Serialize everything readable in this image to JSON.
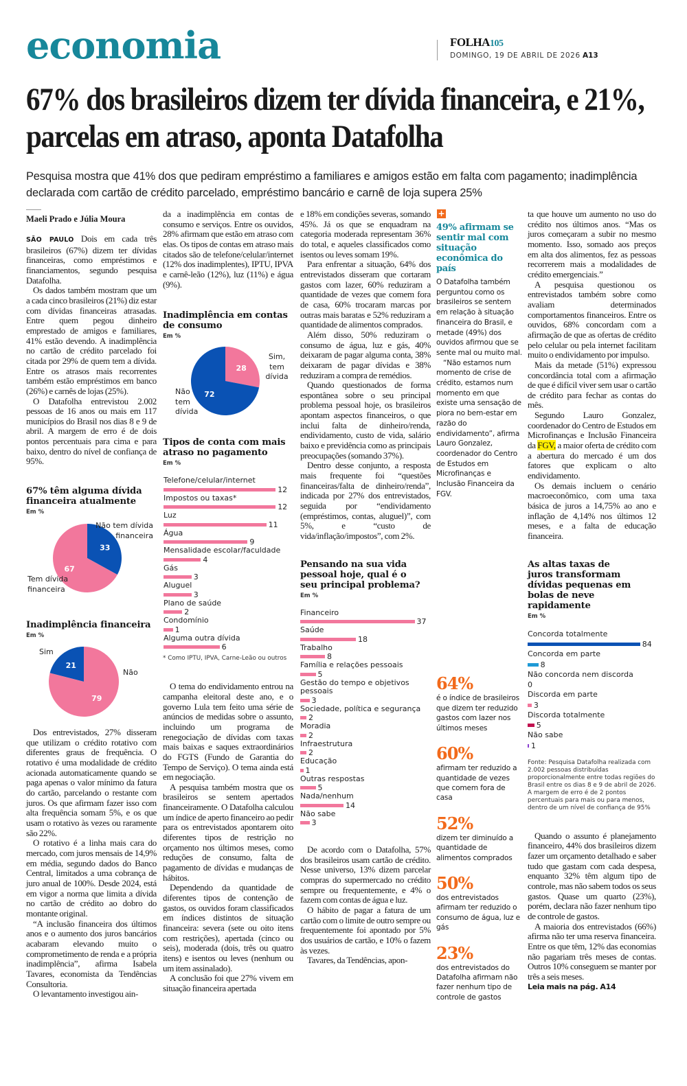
{
  "masthead": {
    "section": "economia",
    "brand": "FOLHA",
    "brand_suffix": "105",
    "date": "DOMINGO, 19 DE ABRIL DE 2026",
    "page": "A13"
  },
  "article": {
    "headline": "67% dos brasileiros dizem ter dívida financeira, e 21%, parcelas em atraso, aponta Datafolha",
    "subtitle": "Pesquisa mostra que 41% dos que pediram empréstimo a familiares e amigos estão em falta com pagamento; inadimplência declarada com cartão de crédito parcelado, empréstimo bancário e carnê de loja supera 25%",
    "byline": "Maeli Prado e Júlia Moura",
    "dateline": "SÃO PAULO",
    "col1_top": [
      "Dois em cada três brasileiros (67%) dizem ter dívidas financeiras, como empréstimos e financiamentos, segundo pesquisa Datafolha.",
      "Os dados também mostram que um a cada cinco brasileiros (21%) diz estar com dívidas financeiras atrasadas. Entre quem pegou dinheiro emprestado de amigos e familiares, 41% estão devendo. A inadimplência no cartão de crédito parcelado foi citada por 29% de quem tem a dívida. Entre os atrasos mais recorrentes também estão empréstimos em banco (26%) e carnês de lojas (25%).",
      "O Datafolha entrevistou 2.002 pessoas de 16 anos ou mais em 117 municípios do Brasil nos dias 8 e 9 de abril. A margem de erro é de dois pontos percentuais para cima e para baixo, dentro do nível de confiança de 95%."
    ],
    "col1_bottom": [
      "Dos entrevistados, 27% disseram que utilizam o crédito rotativo com diferentes graus de frequência. O rotativo é uma modalidade de crédito acionada automaticamente quando se paga apenas o valor mínimo da fatura do cartão, parcelando o restante com juros. Os que afirmam fazer isso com alta frequência somam 5%, e os que usam o rotativo às vezes ou raramente são 22%.",
      "O rotativo é a linha mais cara do mercado, com juros mensais de 14,9% em média, segundo dados do Banco Central, limitados a uma cobrança de juro anual de 100%. Desde 2024, está em vigor a norma que limita a dívida no cartão de crédito ao dobro do montante original.",
      "“A inclusão financeira dos últimos anos e o aumento dos juros bancários acabaram elevando muito o comprometimento de renda e a própria inadimplência”, afirma Isabela Tavares, economista da Tendências Consultoria.",
      "O levantamento investigou ain-"
    ],
    "col2_top": [
      "da a inadimplência em contas de consumo e serviços. Entre os ouvidos, 28% afirmam que estão em atraso com elas. Os tipos de contas em atraso mais citados são de telefone/celular/internet (12% dos inadimplentes), IPTU, IPVA e carnê-leão (12%), luz (11%) e água (9%)."
    ],
    "col2_bottom": [
      "O tema do endividamento entrou na campanha eleitoral deste ano, e o governo Lula tem feito uma série de anúncios de medidas sobre o assunto, incluindo um programa de renegociação de dívidas com taxas mais baixas e saques extraordinários do FGTS (Fundo de Garantia do Tempo de Serviço). O tema ainda está em negociação.",
      "A pesquisa também mostra que os brasileiros se sentem apertados financeiramente. O Datafolha calculou um índice de aperto financeiro ao pedir para os entrevistados apontarem oito diferentes tipos de restrição no orçamento nos últimos meses, como reduções de consumo, falta de pagamento de dívidas e mudanças de hábitos.",
      "Dependendo da quantidade de diferentes tipos de contenção de gastos, os ouvidos foram classificados em índices distintos de situação financeira: severa (sete ou oito itens com restrições), apertada (cinco ou seis), moderada (dois, três ou quatro itens) e isentos ou leves (nenhum ou um item assinalado).",
      "A conclusão foi que 27% vivem em situação financeira apertada"
    ],
    "col3_top": [
      "e 18% em condições severas, somando 45%. Já os que se enquadram na categoria moderada representam 36% do total, e aqueles classificados como isentos ou leves somam 19%.",
      "Para enfrentar a situação, 64% dos entrevistados disseram que cortaram gastos com lazer, 60% reduziram a quantidade de vezes que comem fora de casa, 60% trocaram marcas por outras mais baratas e 52% reduziram a quantidade de alimentos comprados.",
      "Além disso, 50% reduziram o consumo de água, luz e gás, 40% deixaram de pagar alguma conta, 38% deixaram de pagar dívidas e 38% reduziram a compra de remédios.",
      "Quando questionados de forma espontânea sobre o seu principal problema pessoal hoje, os brasileiros apontam aspectos financeiros, o que inclui falta de dinheiro/renda, endividamento, custo de vida, salário baixo e previdência como as principais preocupações (somando 37%).",
      "Dentro desse conjunto, a resposta mais frequente foi “questões financeiras/falta de dinheiro/renda”, indicada por 27% dos entrevistados, seguida por “endividamento (empréstimos, contas, aluguel)”, com 5%, e “custo de vida/inflação/impostos”, com 2%."
    ],
    "col3_bottom": [
      "De acordo com o Datafolha, 57% dos brasileiros usam cartão de crédito. Nesse universo, 13% dizem parcelar compras do supermercado no crédito sempre ou frequentemente, e 4% o fazem com contas de água e luz.",
      "O hábito de pagar a fatura de um cartão com o limite de outro sempre ou frequentemente foi apontado por 5% dos usuários de cartão, e 10% o fazem às vezes.",
      "Tavares, da Tendências, apon-"
    ],
    "col5_top": [
      "ta que houve um aumento no uso do crédito nos últimos anos. “Mas os juros começaram a subir no mesmo momento. Isso, somado aos preços em alta dos alimentos, fez as pessoas recorrerem mais a modalidades de crédito emergenciais.”",
      "A pesquisa questionou os entrevistados também sobre como avaliam determinados comportamentos financeiros. Entre os ouvidos, 68% concordam com a afirmação de que as ofertas de crédito pelo celular ou pela internet facilitam muito o endividamento por impulso.",
      "Mais da metade (51%) expressou concordância total com a afirmação de que é difícil viver sem usar o cartão de crédito para fechar as contas do mês."
    ],
    "col5_gonzalez_before": "Segundo Lauro Gonzalez, coordenador do Centro de Estudos em Microfinanças e Inclusão Financeira da ",
    "col5_gonzalez_highlight": "FGV,",
    "col5_gonzalez_after": " a maior oferta de crédito com a abertura do mercado é um dos fatores que explicam o alto endividamento.",
    "col5_macro": "Os demais incluem o cenário macroeconômico, com uma taxa básica de juros a 14,75% ao ano e inflação de 4,14% nos últimos 12 meses, e a falta de educação financeira.",
    "col5_bottom": [
      "Quando o assunto é planejamento financeiro, 44% dos brasileiros dizem fazer um orçamento detalhado e saber tudo que gastam com cada despesa, enquanto 32% têm algum tipo de controle, mas não sabem todos os seus gastos. Quase um quarto (23%), porém, declara não fazer nenhum tipo de controle de gastos.",
      "A maioria dos entrevistados (66%) afirma não ter uma reserva financeira. Entre os que têm, 12% das economias não pagariam três meses de contas. Outros 10% conseguem se manter por três a seis meses."
    ],
    "read_more": "Leia mais na pág. A14"
  },
  "sidebar": {
    "icon": "plus-icon",
    "title": "49% afirmam se sentir mal com situação econômica do país",
    "body": [
      "O Datafolha também perguntou como os brasileiros se sentem em relação à situação financeira do Brasil, e metade (49%) dos ouvidos afirmou que se sente mal ou muito mal.",
      "“Não estamos num momento de crise de crédito, estamos num momento em que existe uma sensação de piora no bem-estar em razão do endividamento”, afirma Lauro Gonzalez, coordenador do Centro de Estudos em Microfinanças e Inclusão Financeira da FGV."
    ],
    "stats": [
      {
        "value": "64%",
        "text": "é o índice de brasileiros que dizem ter reduzido gastos com lazer nos últimos meses"
      },
      {
        "value": "60%",
        "text": "afirmam ter reduzido a quantidade de vezes que comem fora de casa"
      },
      {
        "value": "52%",
        "text": "dizem ter diminuído a quantidade de alimentos comprados"
      },
      {
        "value": "50%",
        "text": "dos entrevistados afirmam ter reduzido o consumo de água, luz e gás"
      },
      {
        "value": "23%",
        "text": "dos entrevistados do Datafolha afirmam não fazer nenhum tipo de controle de gastos"
      }
    ]
  },
  "colors": {
    "brand_teal": "#17879a",
    "accent_orange": "#f26a1b",
    "pink": "#f2779c",
    "blue": "#0a52b4"
  },
  "chart_data": [
    {
      "type": "pie",
      "title": "67% têm alguma dívida financeira atualmente",
      "unit": "Em %",
      "slices": [
        {
          "label": "Não tem dívida financeira",
          "value": 33,
          "color": "#0a52b4"
        },
        {
          "label": "Tem dívida financeira",
          "value": 67,
          "color": "#f2779c"
        }
      ]
    },
    {
      "type": "pie",
      "title": "Inadimplência financeira",
      "unit": "Em %",
      "slices": [
        {
          "label": "Sim",
          "value": 21,
          "color": "#0a52b4"
        },
        {
          "label": "Não",
          "value": 79,
          "color": "#f2779c"
        }
      ]
    },
    {
      "type": "pie",
      "title": "Inadimplência em contas de consumo",
      "unit": "Em %",
      "slices": [
        {
          "label": "Sim, tem dívida",
          "value": 28,
          "color": "#f2779c"
        },
        {
          "label": "Não tem dívida",
          "value": 72,
          "color": "#0a52b4"
        }
      ]
    },
    {
      "type": "bar",
      "title": "Tipos de conta com mais atraso no pagamento",
      "unit": "Em %",
      "categories": [
        "Telefone/celular/internet",
        "Impostos ou taxas*",
        "Luz",
        "Água",
        "Mensalidade escolar/faculdade",
        "Gás",
        "Aluguel",
        "Plano de saúde",
        "Condomínio",
        "Alguma outra dívida"
      ],
      "values": [
        12,
        12,
        11,
        9,
        4,
        3,
        3,
        2,
        1,
        6
      ],
      "color": "#f2779c",
      "footnote": "* Como IPTU, IPVA, Carne-Leão ou outros"
    },
    {
      "type": "bar",
      "title": "Pensando na sua vida pessoal hoje, qual é o seu principal problema?",
      "unit": "Em %",
      "categories": [
        "Financeiro",
        "Saúde",
        "Trabalho",
        "Família e relações pessoais",
        "Gestão do tempo e objetivos pessoais",
        "Sociedade, política e segurança",
        "Moradia",
        "Infraestrutura",
        "Educação",
        "Outras respostas",
        "Nada/nenhum",
        "Não sabe"
      ],
      "values": [
        37,
        18,
        8,
        5,
        3,
        2,
        2,
        2,
        1,
        5,
        14,
        3
      ],
      "color": "#f2779c"
    },
    {
      "type": "bar",
      "title": "As altas taxas de juros transformam dívidas pequenas em bolas de neve rapidamente",
      "unit": "Em %",
      "categories": [
        "Concorda totalmente",
        "Concorda em parte",
        "Não concorda nem discorda",
        "Discorda em parte",
        "Discorda totalmente",
        "Não sabe"
      ],
      "values": [
        84,
        8,
        0,
        3,
        5,
        1
      ],
      "colors": [
        "#0a52b4",
        "#1f9ad6",
        "#cccccc",
        "#f2779c",
        "#c0114f",
        "#8a3fd0"
      ],
      "source": "Fonte: Pesquisa Datafolha realizada com 2.002 pessoas distribuídas proporcionalmente entre todas regiões do Brasil entre os dias 8 e 9 de abril de 2026. A margem de erro é de 2 pontos percentuais para mais ou para menos, dentro de um nível de confiança de 95%"
    }
  ]
}
